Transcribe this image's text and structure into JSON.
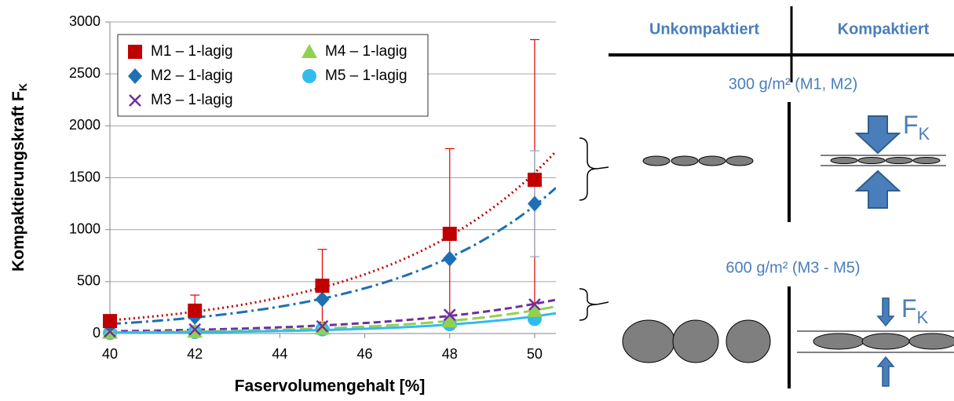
{
  "chart_data": {
    "type": "scatter",
    "xlabel": "Faservolumengehalt [%]",
    "ylabel": "Kompaktierungskraft F",
    "ylabel_sub": "K",
    "x": [
      40,
      42,
      45,
      48,
      50
    ],
    "xlim": [
      40,
      50.5
    ],
    "xticks": [
      40,
      42,
      44,
      46,
      48,
      50
    ],
    "ylim": [
      0,
      3000
    ],
    "yticks": [
      0,
      500,
      1000,
      1500,
      2000,
      2500,
      3000
    ],
    "grid": true,
    "legend": "top-left",
    "series": [
      {
        "name": "M1 – 1-lagig",
        "color": "#c00000",
        "marker": "square",
        "line_style": "dotted",
        "values": [
          120,
          220,
          460,
          960,
          1480
        ],
        "errors": [
          40,
          150,
          350,
          820,
          1350
        ]
      },
      {
        "name": "M2 – 1-lagig",
        "color": "#1f6fb4",
        "marker": "diamond",
        "line_style": "dashdot",
        "values": [
          90,
          160,
          330,
          720,
          1250
        ],
        "errors": [
          null,
          null,
          null,
          null,
          510
        ]
      },
      {
        "name": "M3 – 1-lagig",
        "color": "#7030a0",
        "marker": "x",
        "line_style": "dashed",
        "values": [
          20,
          40,
          70,
          180,
          280
        ],
        "errors": [
          null,
          null,
          null,
          null,
          null
        ]
      },
      {
        "name": "M4 – 1-lagig",
        "color": "#92d050",
        "marker": "triangle",
        "line_style": "longdash",
        "values": [
          10,
          20,
          50,
          120,
          220
        ],
        "errors": [
          null,
          null,
          null,
          null,
          null
        ]
      },
      {
        "name": "M5 – 1-lagig",
        "color": "#33bbee",
        "marker": "circle",
        "line_style": "solid",
        "values": [
          5,
          15,
          40,
          90,
          140
        ],
        "errors": [
          null,
          null,
          null,
          null,
          null
        ]
      }
    ]
  },
  "diagram": {
    "header": [
      "Unkompaktiert",
      "Kompaktiert"
    ],
    "rows": [
      {
        "label": "300 g/m² (M1, M2)",
        "force": "F",
        "force_sub": "K"
      },
      {
        "label": "600 g/m² (M3 - M5)",
        "force": "F",
        "force_sub": "K"
      }
    ]
  }
}
